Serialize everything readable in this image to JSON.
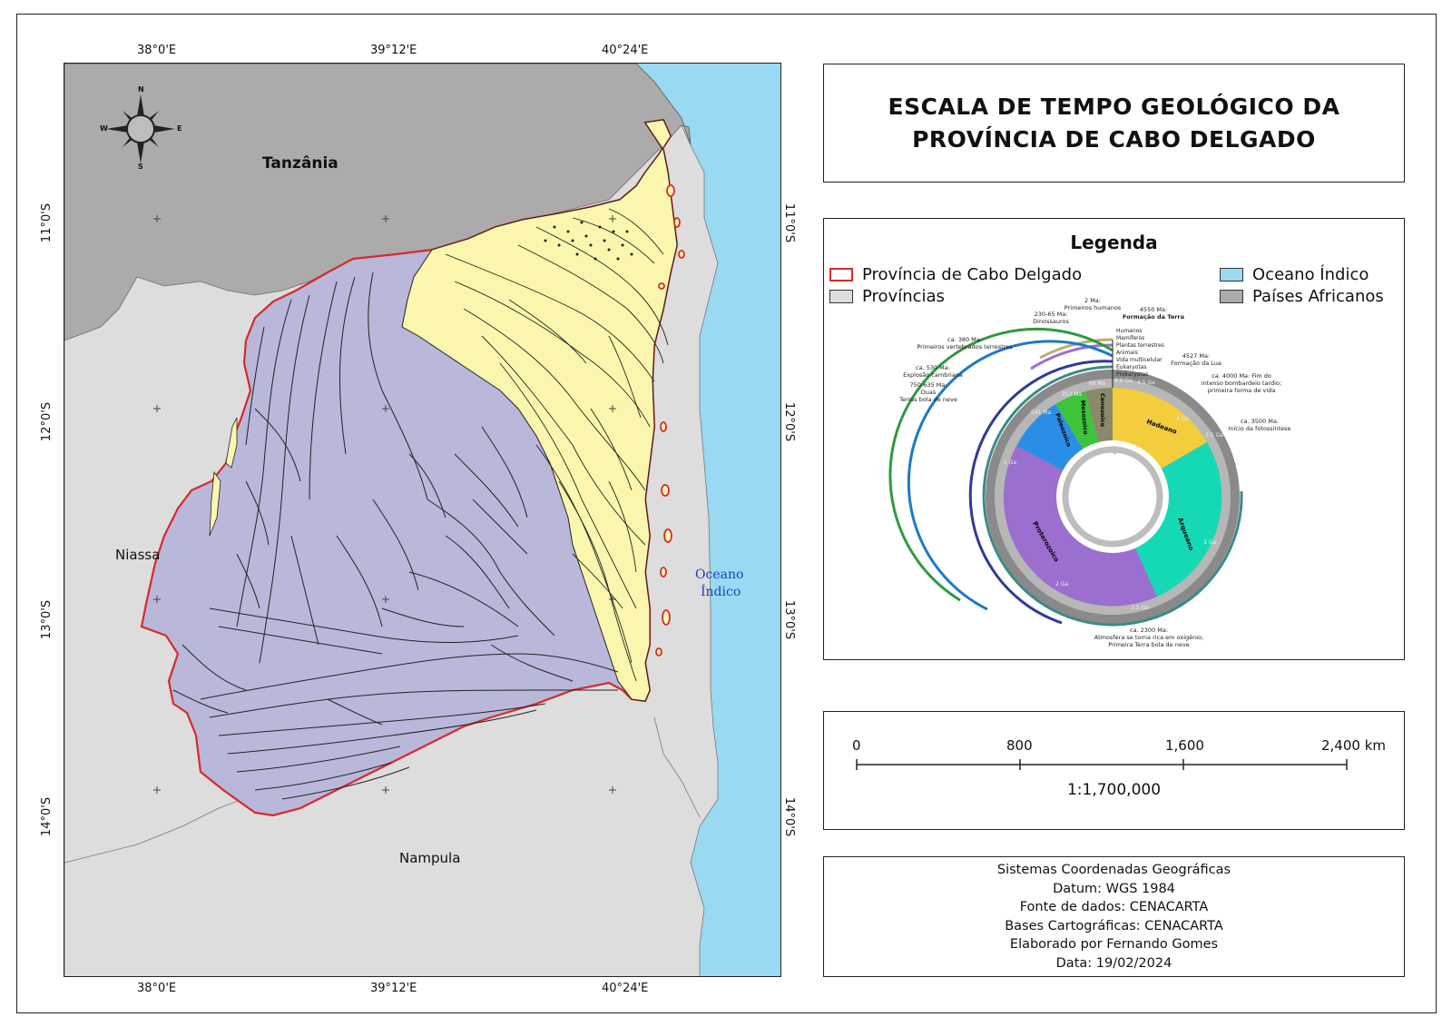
{
  "map": {
    "top_labels": [
      "38°0'E",
      "39°12'E",
      "40°24'E"
    ],
    "bottom_labels": [
      "38°0'E",
      "39°12'E",
      "40°24'E"
    ],
    "left_labels": [
      "11°0'S",
      "12°0'S",
      "13°0'S",
      "14°0'S"
    ],
    "right_labels": [
      "11°0'S",
      "12°0'S",
      "13°0'S",
      "14°0'S"
    ],
    "place_labels": {
      "tanzania": "Tanzânia",
      "niassa": "Niassa",
      "nampula": "Nampula",
      "ocean_line1": "Oceano",
      "ocean_line2": "Índico"
    },
    "compass": {
      "n": "N",
      "s": "S",
      "e": "E",
      "w": "W"
    },
    "colors": {
      "ocean": "#9ad9f2",
      "countries": "#ababab",
      "provinces": "#dddddd",
      "border": "#d62a2a",
      "coastal_geology": "#fbf6ad",
      "basement_geology": "#b9b7da"
    }
  },
  "title": {
    "line1": "ESCALA DE TEMPO GEOLÓGICO DA",
    "line2": "PROVÍNCIA DE CABO DELGADO"
  },
  "legend": {
    "title": "Legenda",
    "items": {
      "province_cd": "Província de Cabo Delgado",
      "provinces": "Províncias",
      "ocean": "Oceano Índico",
      "countries": "Países Africanos"
    }
  },
  "geo_clock": {
    "eons": [
      "Hadeano",
      "Arqueano",
      "Proterozoico",
      "Paleozoico",
      "Mesozoico",
      "Cenozoico"
    ],
    "ticks": [
      "4.6 Ga",
      "4 Ga",
      "3 Ga",
      "2.5 Ga",
      "2 Ga",
      "1 Ga",
      "541 Ma",
      "252 Ma",
      "66 Ma",
      "3.5 Ga",
      "4.5 Ga"
    ],
    "life_labels": [
      "Humanos",
      "Mamíferos",
      "Plantas terrestres",
      "Animais",
      "Vida multicelular",
      "Eukaryotas",
      "Prokaryotas"
    ],
    "events": {
      "e1a": "2 Ma:",
      "e1b": "Primeiros humanos",
      "e2a": "230-65 Ma:",
      "e2b": "Dinossauros",
      "e3a": "4550 Ma:",
      "e3b": "Formação da Terra",
      "e4a": "ca. 380 Ma:",
      "e4b": "Primeiros vertebrados terrestres",
      "e5a": "4527 Ma:",
      "e5b": "Formação da Lua",
      "e6a": "ca. 530 Ma:",
      "e6b": "Explosão cambriana",
      "e7a": "750-635 Ma:",
      "e7b": "Duas",
      "e7c": "Terras bola de neve",
      "e8a": "ca. 4000 Ma: Fim do",
      "e8b": "intenso bombardeio tardio;",
      "e8c": "primeira forma de vida",
      "e9a": "ca. 3500 Ma:",
      "e9b": "Início da fotossíntese",
      "e10a": "ca. 2300 Ma:",
      "e10b": "Atmosfera se torna rica em oxigênio;",
      "e10c": "Primeira Terra bola de neve"
    }
  },
  "scale_bar": {
    "labels": [
      "0",
      "800",
      "1,600",
      "2,400 km"
    ],
    "ratio": "1:1,700,000"
  },
  "info": {
    "lines": [
      "Sistemas Coordenadas Geográficas",
      "Datum: WGS 1984",
      "Fonte de dados: CENACARTA",
      "Bases Cartográficas: CENACARTA",
      "Elaborado por Fernando Gomes",
      "Data: 19/02/2024"
    ]
  }
}
